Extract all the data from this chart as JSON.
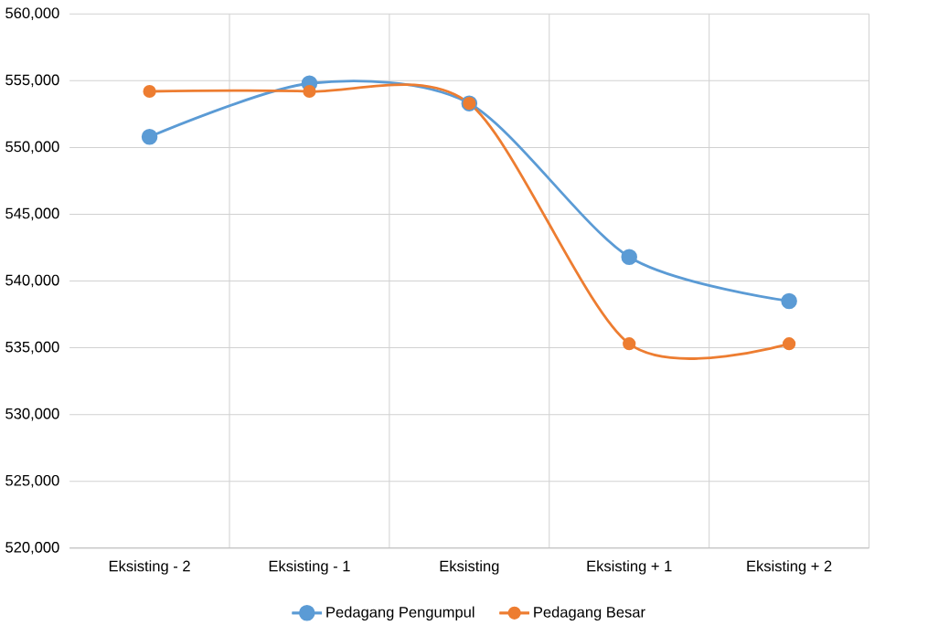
{
  "chart_data": {
    "type": "line",
    "categories": [
      "Eksisting - 2",
      "Eksisting - 1",
      "Eksisting",
      "Eksisting +  1",
      "Eksisting +  2"
    ],
    "series": [
      {
        "name": "Pedagang Pengumpul",
        "color": "#5b9bd5",
        "values": [
          550800,
          554800,
          553300,
          541800,
          538500
        ]
      },
      {
        "name": "Pedagang Besar",
        "color": "#ed7d31",
        "values": [
          554200,
          554200,
          553300,
          535300,
          535300
        ]
      }
    ],
    "ylim": [
      520000,
      560000
    ],
    "yticks": [
      {
        "value": 520000,
        "label": "520,000"
      },
      {
        "value": 525000,
        "label": "525,000"
      },
      {
        "value": 530000,
        "label": "530,000"
      },
      {
        "value": 535000,
        "label": "535,000"
      },
      {
        "value": 540000,
        "label": "540,000"
      },
      {
        "value": 545000,
        "label": "545,000"
      },
      {
        "value": 550000,
        "label": "550,000"
      },
      {
        "value": 555000,
        "label": "555,000"
      },
      {
        "value": 560000,
        "label": "560,000"
      }
    ],
    "grid": true,
    "legend": "bottom",
    "marker": "circle"
  }
}
